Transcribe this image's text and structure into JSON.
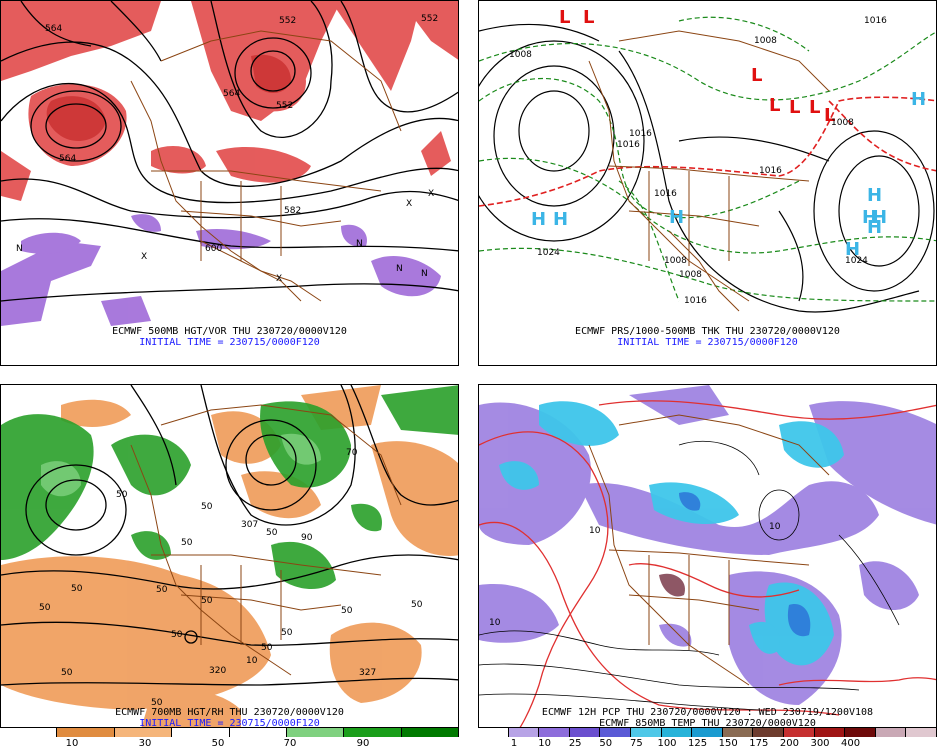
{
  "panels": {
    "top_left": {
      "title": "ECMWF 500MB HGT/VOR THU 230720/0000V120",
      "init": "INITIAL TIME = 230715/0000F120",
      "labels": [
        "552",
        "552",
        "564",
        "564",
        "564",
        "582",
        "600",
        "552",
        "X",
        "N",
        "N",
        "N",
        "N",
        "X",
        "X",
        "X"
      ]
    },
    "top_right": {
      "title": "ECMWF PRS/1000-500MB THK THU 230720/0000V120",
      "init": "INITIAL TIME = 230715/0000F120",
      "labels": [
        "1016",
        "1008",
        "1016",
        "1016",
        "1008",
        "1024",
        "1024",
        "1016",
        "1008",
        "1008",
        "1016",
        "1016",
        "1008"
      ],
      "highs": [
        "H",
        "H",
        "H",
        "H",
        "H",
        "H",
        "H",
        "H",
        "H"
      ],
      "lows": [
        "L",
        "L",
        "L",
        "L",
        "L",
        "L",
        "L"
      ]
    },
    "bottom_left": {
      "title": "ECMWF 700MB HGT/RH THU 230720/0000V120",
      "init": "INITIAL TIME = 230715/0000F120",
      "labels": [
        "50",
        "50",
        "70",
        "90",
        "50",
        "307",
        "50",
        "50",
        "50",
        "50",
        "50",
        "50",
        "50",
        "50",
        "320",
        "327",
        "50",
        "50",
        "50",
        "10",
        "50"
      ],
      "colorbar": {
        "colors": [
          "#ffffff",
          "#e08c40",
          "#f5b57a",
          "#ffffff",
          "#ffffff",
          "#7fd17f",
          "#1a9e1a",
          "#007a00"
        ],
        "labels": [
          "10",
          "30",
          "50",
          "70",
          "90"
        ]
      }
    },
    "bottom_right": {
      "title_line1": "ECMWF 12H PCP THU 230720/0000V120 : WED 230719/1200V108",
      "title_line2": "ECMWF 850MB TEMP THU 230720/0000V120",
      "labels": [
        "10",
        "10",
        "10"
      ],
      "colorbar": {
        "colors": [
          "#ffffff",
          "#b7a3e6",
          "#8d6ddb",
          "#6b4fcf",
          "#5a5ad6",
          "#4fc8e8",
          "#27b3d9",
          "#1a9bd0",
          "#8a6b53",
          "#6e3c2e",
          "#c63030",
          "#a01515",
          "#6e0a0a",
          "#c9a8b5",
          "#e0c8d0"
        ],
        "labels": [
          "1",
          "10",
          "25",
          "50",
          "75",
          "100",
          "125",
          "150",
          "175",
          "200",
          "300",
          "400"
        ]
      }
    }
  }
}
